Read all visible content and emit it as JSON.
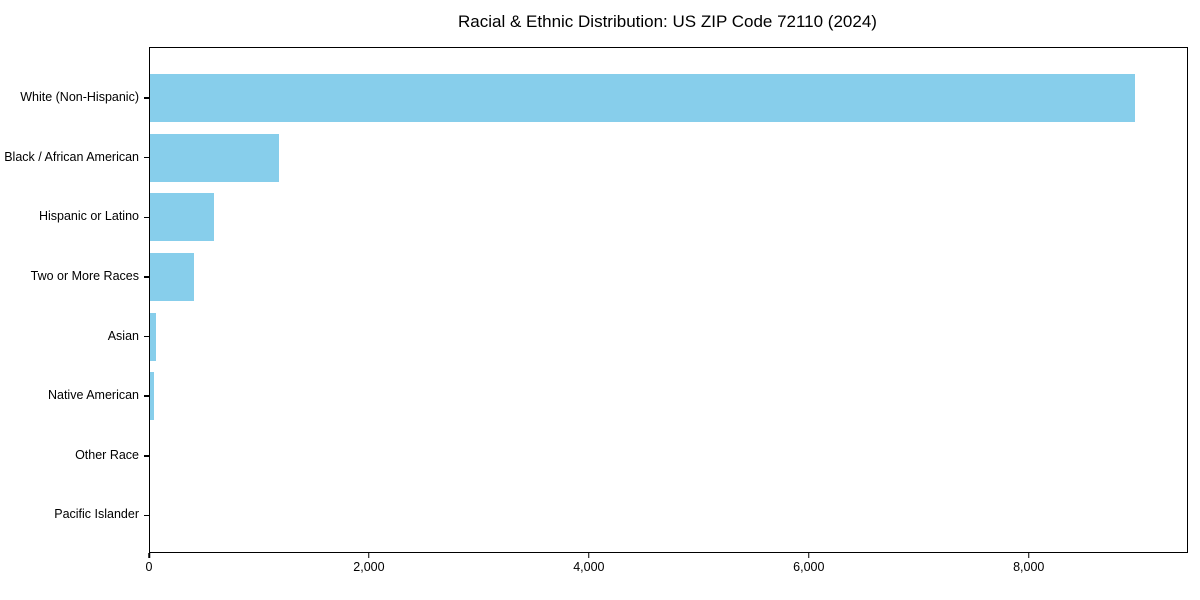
{
  "figure": {
    "background": "#ffffff",
    "frame_color": "#000000"
  },
  "chart_data": {
    "type": "bar",
    "orientation": "horizontal",
    "title": "Racial & Ethnic Distribution: US ZIP Code 72110 (2024)",
    "xlabel": "",
    "ylabel": "",
    "categories": [
      "White (Non-Hispanic)",
      "Black / African American",
      "Hispanic or Latino",
      "Two or More Races",
      "Asian",
      "Native American",
      "Other Race",
      "Pacific Islander"
    ],
    "values": [
      8960,
      1170,
      580,
      400,
      55,
      40,
      0,
      0
    ],
    "xlim": [
      0,
      9430
    ],
    "xticks": {
      "values": [
        0,
        2000,
        4000,
        6000,
        8000
      ],
      "labels": [
        "0",
        "2,000",
        "4,000",
        "6,000",
        "8,000"
      ]
    },
    "bar_color": "#87CEEB",
    "grid": false,
    "legend": null
  }
}
